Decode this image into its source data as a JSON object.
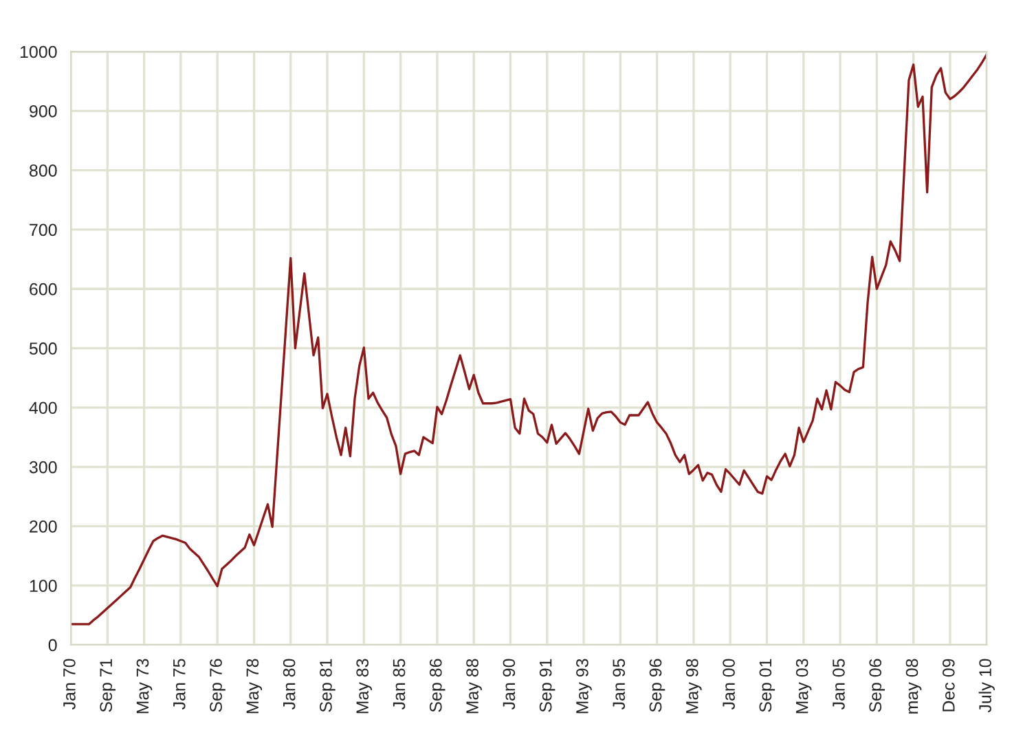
{
  "chart_data": {
    "type": "line",
    "ylim": [
      0,
      1000
    ],
    "yticks": [
      0,
      100,
      200,
      300,
      400,
      500,
      600,
      700,
      800,
      900,
      1000
    ],
    "categories": [
      "Jan 70",
      null,
      null,
      null,
      null,
      null,
      null,
      null,
      "Sep 71",
      null,
      null,
      null,
      null,
      null,
      null,
      null,
      "May 73",
      null,
      null,
      null,
      null,
      null,
      null,
      null,
      "Jan 75",
      null,
      null,
      null,
      null,
      null,
      null,
      null,
      "Sep 76",
      null,
      null,
      null,
      null,
      null,
      null,
      null,
      "May 78",
      null,
      null,
      null,
      null,
      null,
      null,
      null,
      "Jan 80",
      null,
      null,
      null,
      null,
      null,
      null,
      null,
      "Sep 81",
      null,
      null,
      null,
      null,
      null,
      null,
      null,
      "May 83",
      null,
      null,
      null,
      null,
      null,
      null,
      null,
      "Jan 85",
      null,
      null,
      null,
      null,
      null,
      null,
      null,
      "Sep 86",
      null,
      null,
      null,
      null,
      null,
      null,
      null,
      "May 88",
      null,
      null,
      null,
      null,
      null,
      null,
      null,
      "Jan 90",
      null,
      null,
      null,
      null,
      null,
      null,
      null,
      "Sep 91",
      null,
      null,
      null,
      null,
      null,
      null,
      null,
      "May 93",
      null,
      null,
      null,
      null,
      null,
      null,
      null,
      "Jan 95",
      null,
      null,
      null,
      null,
      null,
      null,
      null,
      "Sep 96",
      null,
      null,
      null,
      null,
      null,
      null,
      null,
      "May 98",
      null,
      null,
      null,
      null,
      null,
      null,
      null,
      "Jan 00",
      null,
      null,
      null,
      null,
      null,
      null,
      null,
      "Sep 01",
      null,
      null,
      null,
      null,
      null,
      null,
      null,
      "May 03",
      null,
      null,
      null,
      null,
      null,
      null,
      null,
      "Jan 05",
      null,
      null,
      null,
      null,
      null,
      null,
      null,
      "Sep 06",
      null,
      null,
      null,
      null,
      null,
      null,
      null,
      "may 08",
      null,
      null,
      null,
      null,
      null,
      null,
      null,
      "Dec 09",
      null,
      null,
      null,
      null,
      null,
      null,
      null,
      "July 10"
    ],
    "grid": true,
    "marker": "none",
    "line_style": "solid",
    "series": [
      {
        "color": "#8b1a1a",
        "values": [
          35,
          35,
          35,
          35,
          35,
          42,
          48,
          55,
          62,
          69,
          76,
          83,
          90,
          97,
          113,
          128,
          144,
          160,
          175,
          180,
          184,
          182,
          180,
          178,
          175,
          172,
          162,
          155,
          148,
          136,
          124,
          111,
          99,
          128,
          135,
          142,
          150,
          157,
          164,
          186,
          168,
          191,
          214,
          237,
          199,
          312,
          425,
          538,
          652,
          500,
          563,
          626,
          557,
          488,
          518,
          399,
          423,
          385,
          350,
          320,
          366,
          318,
          415,
          470,
          501,
          415,
          425,
          408,
          395,
          383,
          355,
          335,
          288,
          322,
          325,
          327,
          320,
          350,
          345,
          340,
          401,
          389,
          412,
          438,
          463,
          488,
          460,
          431,
          455,
          425,
          407,
          407,
          407,
          408,
          410,
          412,
          414,
          366,
          356,
          415,
          395,
          389,
          356,
          350,
          341,
          371,
          339,
          348,
          357,
          347,
          335,
          322,
          360,
          398,
          361,
          382,
          390,
          392,
          393,
          385,
          375,
          371,
          387,
          387,
          387,
          398,
          409,
          390,
          375,
          366,
          356,
          340,
          320,
          308,
          320,
          288,
          295,
          303,
          277,
          290,
          287,
          270,
          258,
          296,
          288,
          279,
          270,
          294,
          282,
          270,
          258,
          255,
          284,
          278,
          295,
          310,
          322,
          301,
          320,
          366,
          342,
          360,
          378,
          415,
          397,
          429,
          397,
          443,
          437,
          430,
          426,
          460,
          465,
          468,
          577,
          654,
          600,
          620,
          640,
          680,
          665,
          647,
          800,
          952,
          978,
          907,
          924,
          763,
          940,
          960,
          972,
          931,
          920,
          925,
          932,
          940,
          950,
          960,
          970,
          982,
          995
        ]
      }
    ]
  }
}
